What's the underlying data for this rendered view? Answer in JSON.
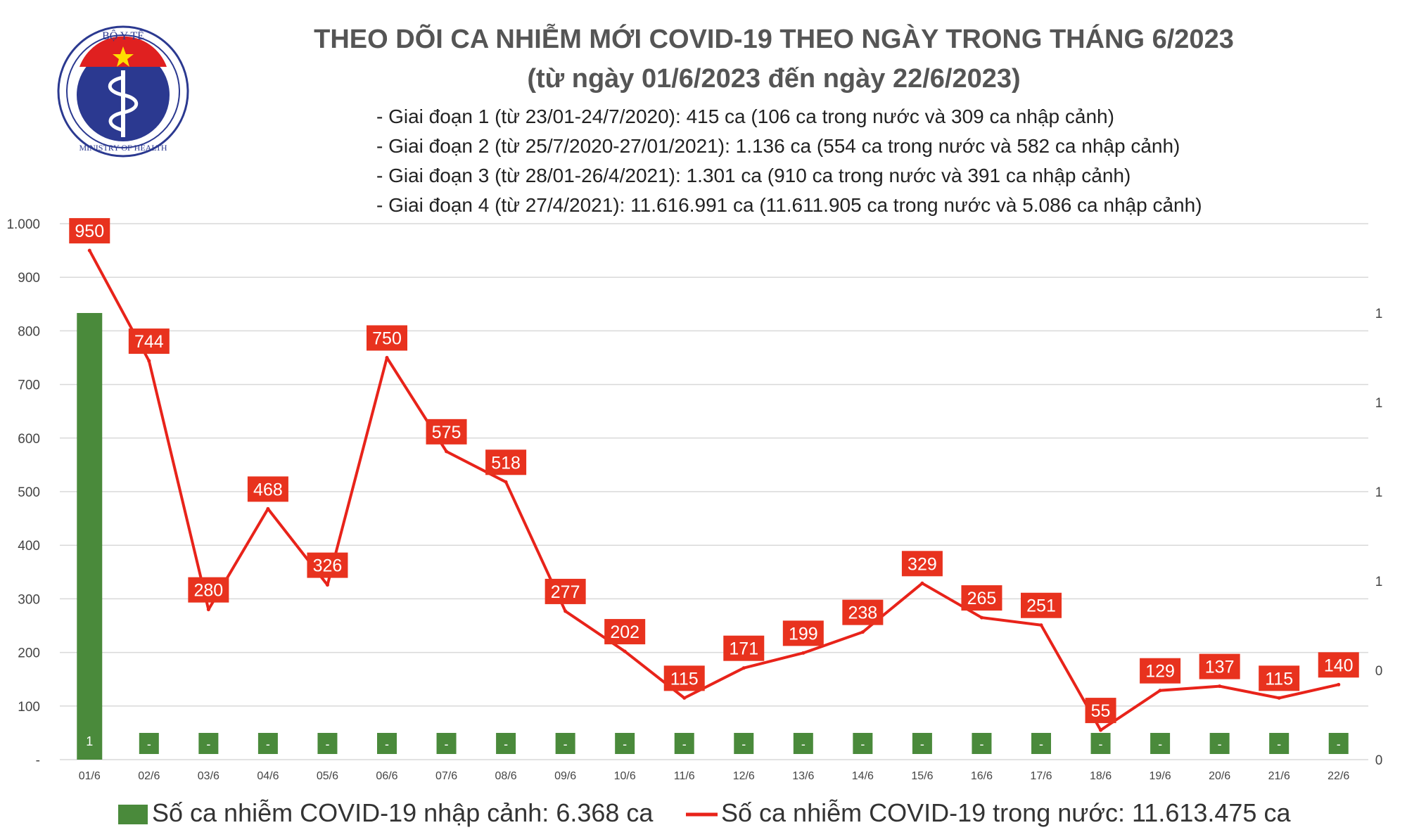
{
  "header": {
    "logo_top_text": "BỘ Y TẾ",
    "logo_bottom_text": "MINISTRY OF HEALTH",
    "title_line1": "THEO DÕI CA NHIỄM MỚI COVID-19 THEO NGÀY TRONG THÁNG 6/2023",
    "title_line2": "(từ ngày 01/6/2023 đến ngày 22/6/2023)",
    "phases": [
      "- Giai đoạn 1 (từ 23/01-24/7/2020): 415 ca (106 ca trong nước và 309 ca nhập cảnh)",
      "- Giai đoạn 2 (từ 25/7/2020-27/01/2021): 1.136 ca (554 ca trong nước và 582 ca nhập cảnh)",
      "- Giai đoạn 3 (từ 28/01-26/4/2021): 1.301 ca (910 ca trong nước và 391 ca nhập cảnh)",
      "- Giai đoạn 4 (từ 27/4/2021): 11.616.991 ca (11.611.905 ca trong nước và 5.086 ca nhập cảnh)"
    ]
  },
  "colors": {
    "bar": "#4a8a3b",
    "line": "#e8231a",
    "label_bg": "#e8321e",
    "title": "#555555"
  },
  "chart_data": {
    "type": "bar+line",
    "categories": [
      "01/6",
      "02/6",
      "03/6",
      "04/6",
      "05/6",
      "06/6",
      "07/6",
      "08/6",
      "09/6",
      "10/6",
      "11/6",
      "12/6",
      "13/6",
      "14/6",
      "15/6",
      "16/6",
      "17/6",
      "18/6",
      "19/6",
      "20/6",
      "21/6",
      "22/6"
    ],
    "bar_series": {
      "name": "Số ca nhiễm COVID-19 nhập cảnh: 6.368 ca",
      "values": [
        1,
        0,
        0,
        0,
        0,
        0,
        0,
        0,
        0,
        0,
        0,
        0,
        0,
        0,
        0,
        0,
        0,
        0,
        0,
        0,
        0,
        0
      ],
      "labels": [
        "1",
        "-",
        "-",
        "-",
        "-",
        "-",
        "-",
        "-",
        "-",
        "-",
        "-",
        "-",
        "-",
        "-",
        "-",
        "-",
        "-",
        "-",
        "-",
        "-",
        "-",
        "-"
      ],
      "axis": "right",
      "right_ylim": [
        0,
        1.2
      ]
    },
    "line_series": {
      "name": "Số ca nhiễm COVID-19 trong nước: 11.613.475 ca",
      "values": [
        950,
        744,
        280,
        468,
        326,
        750,
        575,
        518,
        277,
        202,
        115,
        171,
        199,
        238,
        329,
        265,
        251,
        55,
        129,
        137,
        115,
        140
      ],
      "axis": "left"
    },
    "left_axis": {
      "ylim": [
        0,
        1000
      ],
      "ticks": [
        "-",
        "100",
        "200",
        "300",
        "400",
        "500",
        "600",
        "700",
        "800",
        "900",
        "1.000"
      ]
    },
    "right_axis": {
      "ticks": [
        "0",
        "0",
        "1",
        "1",
        "1",
        "1"
      ]
    },
    "grid": true,
    "legend_position": "bottom"
  }
}
